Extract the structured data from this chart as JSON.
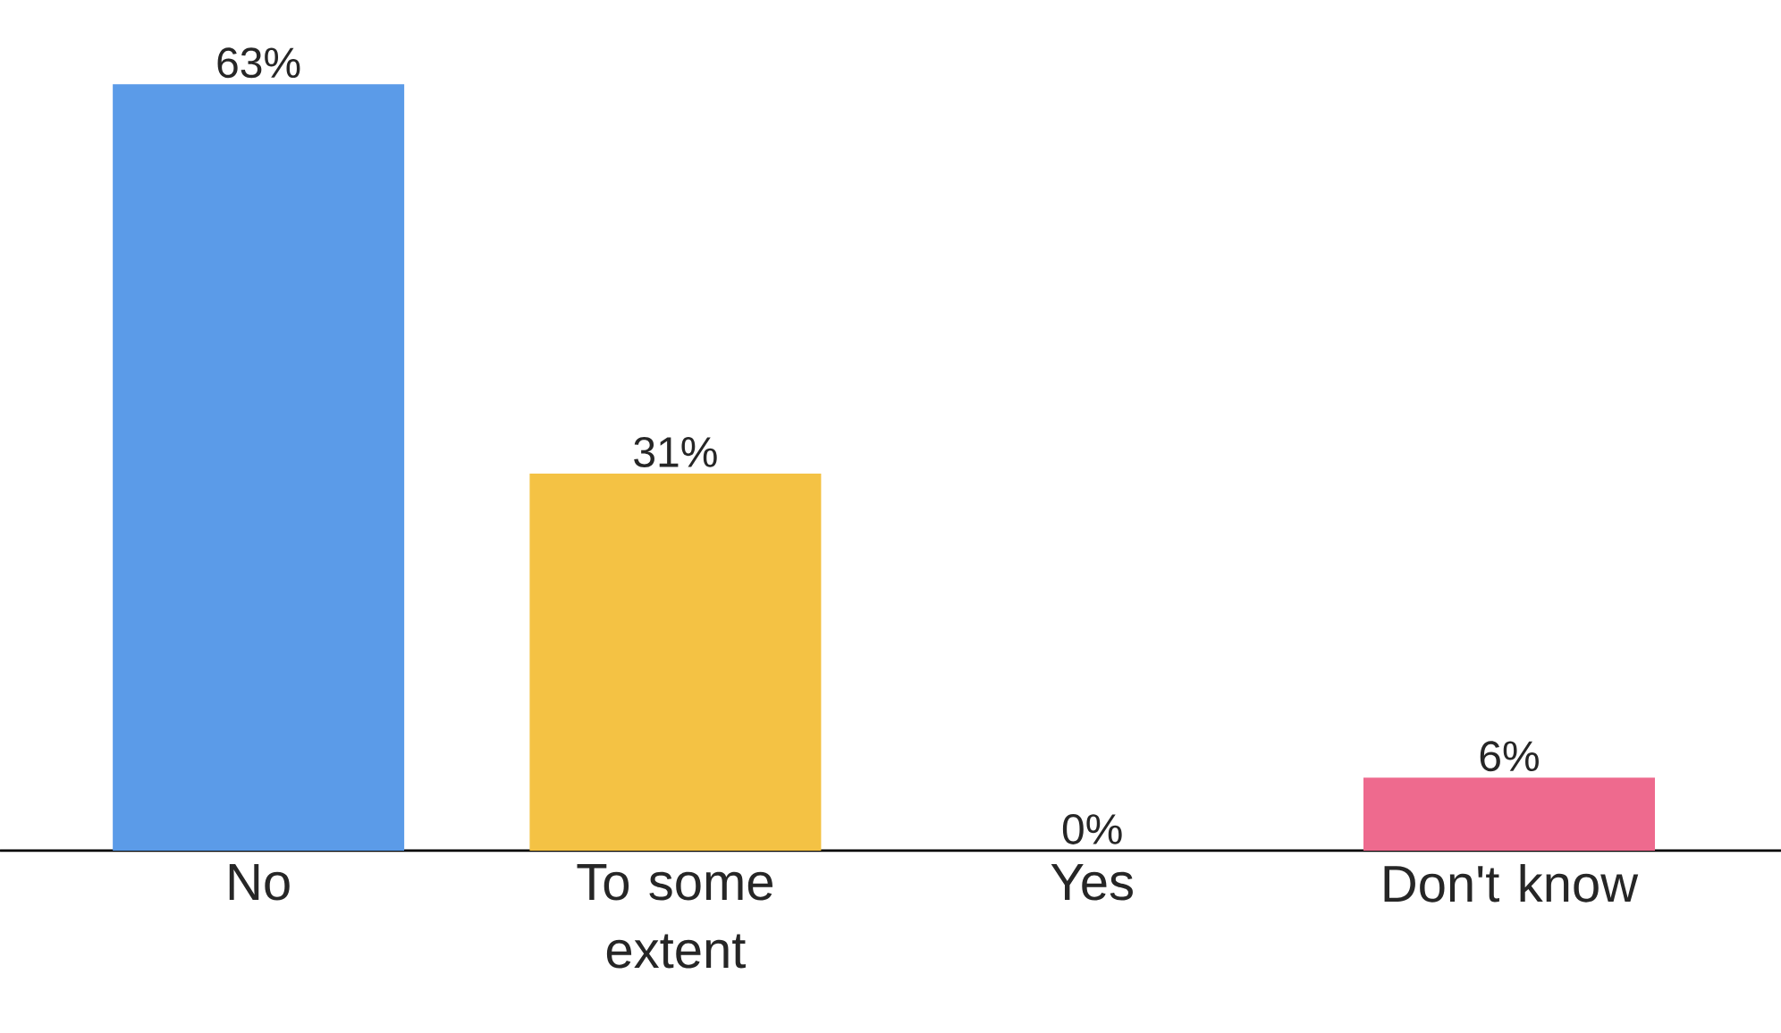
{
  "chart_data": {
    "type": "bar",
    "categories": [
      "No",
      "To some extent",
      "Yes",
      "Don't know"
    ],
    "values": [
      63,
      31,
      0,
      6
    ],
    "colors": [
      "#5b9be8",
      "#f4c244",
      "#9e9e9e",
      "#ee6a8e"
    ],
    "value_labels": [
      "63%",
      "31%",
      "0%",
      "6%"
    ]
  }
}
